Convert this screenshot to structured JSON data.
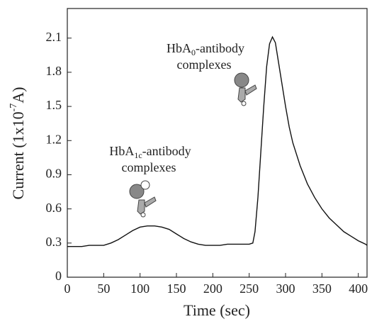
{
  "chart_data": {
    "type": "line",
    "x_label": "Time (sec)",
    "y_label": {
      "base": "Current (1x10",
      "sup": "-7",
      "rest": "A)"
    },
    "annotations": [
      {
        "base": "HbA",
        "sub": "1c",
        "rest": "-antibody",
        "line2": "complexes"
      },
      {
        "base": "HbA",
        "sub": "0",
        "rest": "-antibody",
        "line2": "complexes"
      }
    ],
    "x": [
      0,
      10,
      20,
      30,
      40,
      50,
      60,
      70,
      80,
      90,
      100,
      110,
      120,
      130,
      140,
      150,
      160,
      170,
      180,
      190,
      200,
      210,
      220,
      230,
      240,
      250,
      255,
      258,
      262,
      266,
      270,
      274,
      278,
      282,
      286,
      290,
      295,
      300,
      305,
      310,
      320,
      330,
      340,
      350,
      360,
      370,
      380,
      390,
      400,
      410,
      412
    ],
    "values": [
      0.27,
      0.27,
      0.27,
      0.28,
      0.28,
      0.28,
      0.3,
      0.33,
      0.37,
      0.41,
      0.44,
      0.45,
      0.45,
      0.44,
      0.42,
      0.38,
      0.34,
      0.31,
      0.29,
      0.28,
      0.28,
      0.28,
      0.29,
      0.29,
      0.29,
      0.29,
      0.3,
      0.4,
      0.7,
      1.1,
      1.5,
      1.85,
      2.05,
      2.11,
      2.06,
      1.9,
      1.7,
      1.5,
      1.32,
      1.18,
      0.98,
      0.82,
      0.7,
      0.6,
      0.52,
      0.46,
      0.4,
      0.36,
      0.32,
      0.29,
      0.28
    ],
    "color": "#111111",
    "xlim": [
      0,
      412
    ],
    "ylim": [
      0,
      2.36
    ],
    "xticks": [
      0,
      50,
      100,
      150,
      200,
      250,
      300,
      350,
      400
    ],
    "yticks": [
      0,
      0.3,
      0.6,
      0.9,
      1.2,
      1.5,
      1.8,
      2.1
    ]
  }
}
